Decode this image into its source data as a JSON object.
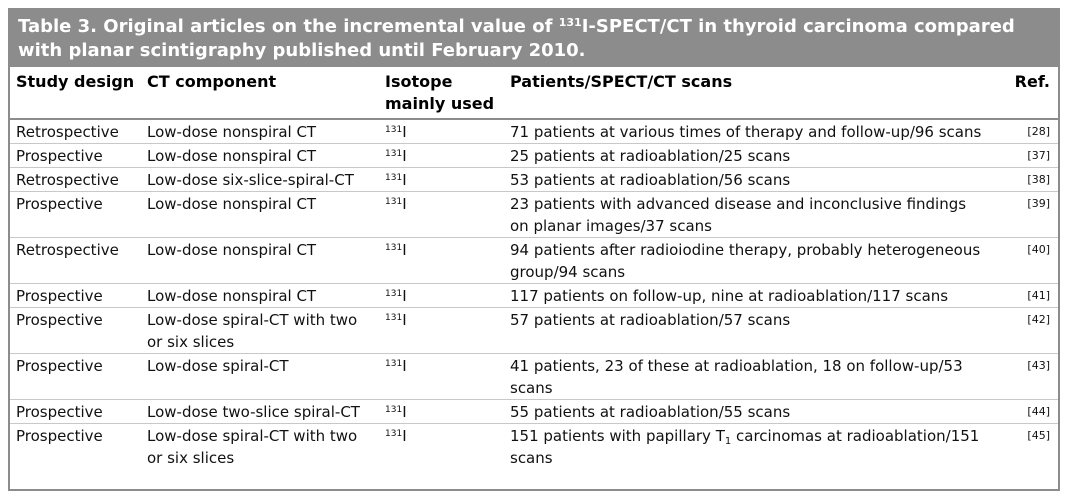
{
  "title": {
    "prefix": "Table 3. Original articles on the incremental value of ",
    "isotope_mass": "131",
    "suffix": "I-SPECT/CT in thyroid carcinoma compared with planar scintigraphy published until February 2010."
  },
  "headers": {
    "study_design": "Study design",
    "ct_component": "CT component",
    "isotope": "Isotope mainly used",
    "patients": "Patients/SPECT/CT scans",
    "ref": "Ref."
  },
  "rows": [
    {
      "design": "Retrospective",
      "ct": "Low-dose nonspiral CT",
      "iso_mass": "131",
      "iso": "I",
      "patients": "71 patients at various times of therapy and follow-up/96 scans",
      "ref": "[28]"
    },
    {
      "design": "Prospective",
      "ct": "Low-dose nonspiral CT",
      "iso_mass": "131",
      "iso": "I",
      "patients": "25 patients at radioablation/25 scans",
      "ref": "[37]"
    },
    {
      "design": "Retrospective",
      "ct": "Low-dose six-slice-spiral-CT",
      "iso_mass": "131",
      "iso": "I",
      "patients": "53 patients at radioablation/56 scans",
      "ref": "[38]"
    },
    {
      "design": "Prospective",
      "ct": "Low-dose nonspiral CT",
      "iso_mass": "131",
      "iso": "I",
      "patients": "23 patients with advanced disease and inconclusive findings on planar images/37 scans",
      "ref": "[39]"
    },
    {
      "design": "Retrospective",
      "ct": "Low-dose nonspiral CT",
      "iso_mass": "131",
      "iso": "I",
      "patients": "94 patients after radioiodine therapy, probably heterogeneous group/94 scans",
      "ref": "[40]"
    },
    {
      "design": "Prospective",
      "ct": "Low-dose nonspiral CT",
      "iso_mass": "131",
      "iso": "I",
      "patients": "117 patients on follow-up, nine at radioablation/117 scans",
      "ref": "[41]"
    },
    {
      "design": "Prospective",
      "ct": "Low-dose spiral-CT with two or six slices",
      "iso_mass": "131",
      "iso": "I",
      "patients": "57 patients at radioablation/57 scans",
      "ref": "[42]"
    },
    {
      "design": "Prospective",
      "ct": "Low-dose spiral-CT",
      "iso_mass": "131",
      "iso": "I",
      "patients": "41 patients, 23 of these at radioablation, 18 on follow-up/53 scans",
      "ref": "[43]"
    },
    {
      "design": "Prospective",
      "ct": "Low-dose two-slice spiral-CT",
      "iso_mass": "131",
      "iso": "I",
      "patients": "55 patients at radioablation/55 scans",
      "ref": "[44]"
    },
    {
      "design": "Prospective",
      "ct": "Low-dose spiral-CT with two or six slices",
      "iso_mass": "131",
      "iso": "I",
      "patients_pre": "151 patients with papillary T",
      "patients_sub": "1",
      "patients_post": " carcinomas at radioablation/151 scans",
      "ref": "[45]"
    }
  ],
  "colors": {
    "header_bg": "#8c8c8c",
    "rule": "#c8c8c8"
  }
}
